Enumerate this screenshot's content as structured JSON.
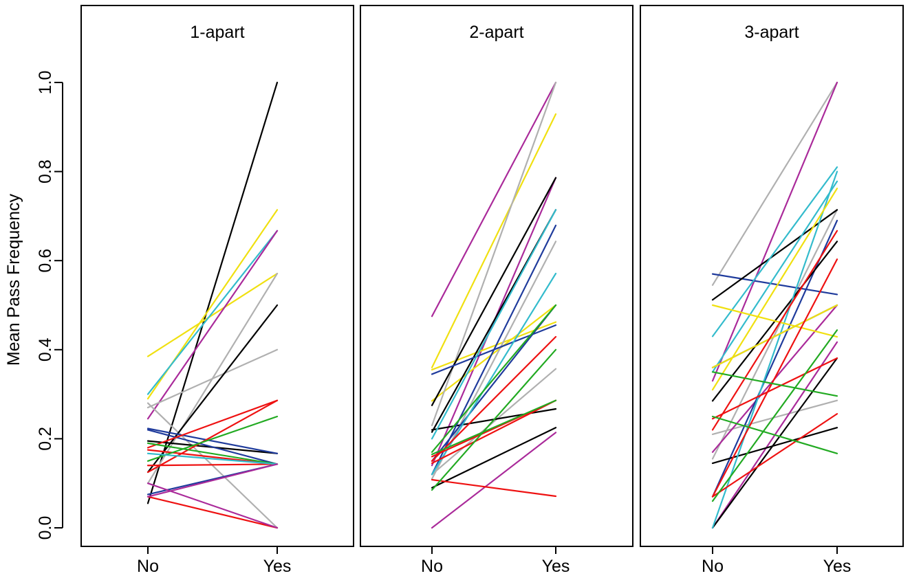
{
  "chart_data": {
    "type": "line",
    "ylabel": "Mean Pass Frequency",
    "ylim": [
      0,
      1
    ],
    "yticks": [
      "0.0",
      "0.2",
      "0.4",
      "0.6",
      "0.8",
      "1.0"
    ],
    "x": [
      "No",
      "Yes"
    ],
    "colors": {
      "black": "#000000",
      "grey": "#b0b0b0",
      "red": "#ee1111",
      "green": "#22aa22",
      "blue": "#1f3b9c",
      "cyan": "#33bbcc",
      "purple": "#aa2a9a",
      "yellow": "#f0e010"
    },
    "panels": [
      {
        "title": "1-apart",
        "series": [
          {
            "color": "black",
            "values": [
              0.055,
              1.0
            ]
          },
          {
            "color": "yellow",
            "values": [
              0.385,
              0.571
            ]
          },
          {
            "color": "yellow",
            "values": [
              0.29,
              0.714
            ]
          },
          {
            "color": "cyan",
            "values": [
              0.3,
              0.667
            ]
          },
          {
            "color": "purple",
            "values": [
              0.245,
              0.667
            ]
          },
          {
            "color": "grey",
            "values": [
              0.27,
              0.4
            ]
          },
          {
            "color": "grey",
            "values": [
              0.28,
              0.0
            ]
          },
          {
            "color": "grey",
            "values": [
              0.1,
              0.571
            ]
          },
          {
            "color": "black",
            "values": [
              0.125,
              0.5
            ]
          },
          {
            "color": "black",
            "values": [
              0.195,
              0.167
            ]
          },
          {
            "color": "blue",
            "values": [
              0.223,
              0.167
            ]
          },
          {
            "color": "blue",
            "values": [
              0.075,
              0.143
            ]
          },
          {
            "color": "blue",
            "values": [
              0.22,
              0.143
            ]
          },
          {
            "color": "red",
            "values": [
              0.18,
              0.286
            ]
          },
          {
            "color": "red",
            "values": [
              0.125,
              0.286
            ]
          },
          {
            "color": "red",
            "values": [
              0.14,
              0.143
            ]
          },
          {
            "color": "red",
            "values": [
              0.07,
              0.0
            ]
          },
          {
            "color": "red",
            "values": [
              0.175,
              0.143
            ]
          },
          {
            "color": "green",
            "values": [
              0.15,
              0.25
            ]
          },
          {
            "color": "green",
            "values": [
              0.19,
              0.143
            ]
          },
          {
            "color": "cyan",
            "values": [
              0.167,
              0.143
            ]
          },
          {
            "color": "purple",
            "values": [
              0.1,
              0.0
            ]
          },
          {
            "color": "purple",
            "values": [
              0.07,
              0.143
            ]
          }
        ]
      },
      {
        "title": "2-apart",
        "series": [
          {
            "color": "purple",
            "values": [
              0.475,
              1.0
            ]
          },
          {
            "color": "purple",
            "values": [
              0.0,
              0.214
            ]
          },
          {
            "color": "purple",
            "values": [
              0.14,
              0.786
            ]
          },
          {
            "color": "yellow",
            "values": [
              0.36,
              0.929
            ]
          },
          {
            "color": "yellow",
            "values": [
              0.285,
              0.5
            ]
          },
          {
            "color": "yellow",
            "values": [
              0.355,
              0.462
            ]
          },
          {
            "color": "grey",
            "values": [
              0.23,
              1.0
            ]
          },
          {
            "color": "grey",
            "values": [
              0.11,
              0.643
            ]
          },
          {
            "color": "grey",
            "values": [
              0.12,
              0.357
            ]
          },
          {
            "color": "black",
            "values": [
              0.275,
              0.786
            ]
          },
          {
            "color": "black",
            "values": [
              0.215,
              0.714
            ]
          },
          {
            "color": "black",
            "values": [
              0.22,
              0.267
            ]
          },
          {
            "color": "black",
            "values": [
              0.09,
              0.225
            ]
          },
          {
            "color": "blue",
            "values": [
              0.345,
              0.455
            ]
          },
          {
            "color": "blue",
            "values": [
              0.12,
              0.679
            ]
          },
          {
            "color": "blue",
            "values": [
              0.15,
              0.5
            ]
          },
          {
            "color": "cyan",
            "values": [
              0.2,
              0.714
            ]
          },
          {
            "color": "cyan",
            "values": [
              0.12,
              0.571
            ]
          },
          {
            "color": "red",
            "values": [
              0.108,
              0.071
            ]
          },
          {
            "color": "red",
            "values": [
              0.15,
              0.429
            ]
          },
          {
            "color": "red",
            "values": [
              0.145,
              0.286
            ]
          },
          {
            "color": "red",
            "values": [
              0.16,
              0.286
            ]
          },
          {
            "color": "green",
            "values": [
              0.085,
              0.4
            ]
          },
          {
            "color": "green",
            "values": [
              0.165,
              0.286
            ]
          },
          {
            "color": "green",
            "values": [
              0.17,
              0.5
            ]
          }
        ]
      },
      {
        "title": "3-apart",
        "series": [
          {
            "color": "grey",
            "values": [
              0.545,
              1.0
            ]
          },
          {
            "color": "grey",
            "values": [
              0.155,
              0.714
            ]
          },
          {
            "color": "grey",
            "values": [
              0.21,
              0.286
            ]
          },
          {
            "color": "purple",
            "values": [
              0.33,
              1.0
            ]
          },
          {
            "color": "purple",
            "values": [
              0.17,
              0.5
            ]
          },
          {
            "color": "purple",
            "values": [
              0.0,
              0.417
            ]
          },
          {
            "color": "blue",
            "values": [
              0.57,
              0.524
            ]
          },
          {
            "color": "blue",
            "values": [
              0.36,
              0.5
            ]
          },
          {
            "color": "blue",
            "values": [
              0.07,
              0.69
            ]
          },
          {
            "color": "black",
            "values": [
              0.512,
              0.714
            ]
          },
          {
            "color": "black",
            "values": [
              0.285,
              0.643
            ]
          },
          {
            "color": "black",
            "values": [
              0.145,
              0.225
            ]
          },
          {
            "color": "black",
            "values": [
              0.0,
              0.381
            ]
          },
          {
            "color": "cyan",
            "values": [
              0.43,
              0.81
            ]
          },
          {
            "color": "cyan",
            "values": [
              0.35,
              0.778
            ]
          },
          {
            "color": "cyan",
            "values": [
              0.0,
              0.8
            ]
          },
          {
            "color": "yellow",
            "values": [
              0.5,
              0.429
            ]
          },
          {
            "color": "yellow",
            "values": [
              0.31,
              0.762
            ]
          },
          {
            "color": "yellow",
            "values": [
              0.36,
              0.5
            ]
          },
          {
            "color": "red",
            "values": [
              0.22,
              0.667
            ]
          },
          {
            "color": "red",
            "values": [
              0.245,
              0.381
            ]
          },
          {
            "color": "red",
            "values": [
              0.07,
              0.256
            ]
          },
          {
            "color": "red",
            "values": [
              0.07,
              0.603
            ]
          },
          {
            "color": "green",
            "values": [
              0.35,
              0.296
            ]
          },
          {
            "color": "green",
            "values": [
              0.25,
              0.167
            ]
          },
          {
            "color": "green",
            "values": [
              0.06,
              0.444
            ]
          }
        ]
      }
    ]
  }
}
